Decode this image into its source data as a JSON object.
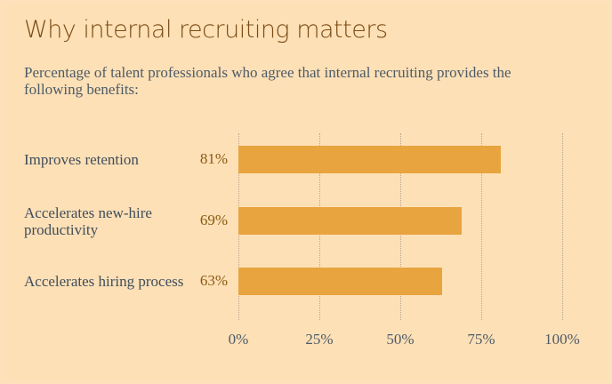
{
  "chart_data": {
    "type": "bar",
    "orientation": "horizontal",
    "title": "Why internal recruiting matters",
    "subtitle": "Percentage of talent professionals who agree that internal recruiting provides the following benefits:",
    "categories": [
      "Improves retention",
      "Accelerates new-hire productivity",
      "Accelerates hiring process"
    ],
    "values": [
      81,
      69,
      63
    ],
    "value_labels": [
      "81%",
      "69%",
      "63%"
    ],
    "color": "#e8a43f",
    "xlim": [
      0,
      100
    ],
    "xticks": [
      {
        "value": 0,
        "label": "0%"
      },
      {
        "value": 25,
        "label": "25%"
      },
      {
        "value": 50,
        "label": "50%"
      },
      {
        "value": 75,
        "label": "75%"
      },
      {
        "value": 100,
        "label": "100%"
      }
    ],
    "grid": true
  }
}
